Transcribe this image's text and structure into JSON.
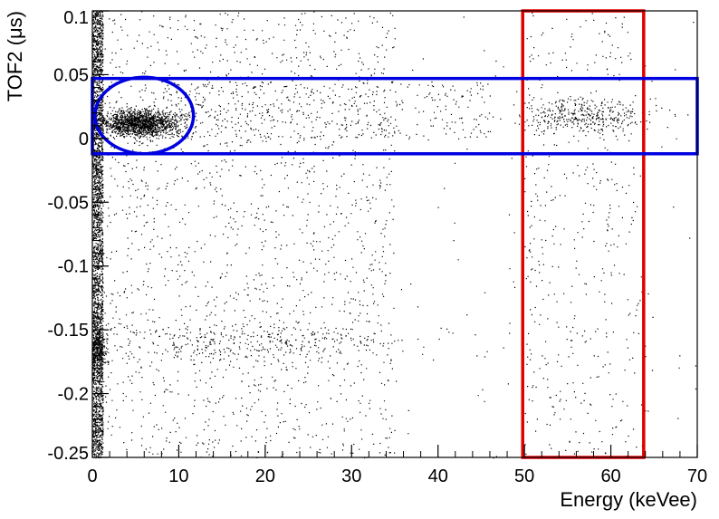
{
  "chart_data": {
    "type": "scatter",
    "xlabel": "Energy (keVee)",
    "ylabel": "TOF2 (μs)",
    "xlim": [
      0,
      70
    ],
    "ylim": [
      -0.25,
      0.1
    ],
    "xticks": [
      0,
      10,
      20,
      30,
      40,
      50,
      60,
      70
    ],
    "yticks": [
      -0.25,
      -0.2,
      -0.15,
      -0.1,
      -0.05,
      0,
      0.05,
      0.1
    ],
    "xtick_labels": [
      "0",
      "10",
      "20",
      "30",
      "40",
      "50",
      "60",
      "70"
    ],
    "ytick_labels": [
      "-0.25",
      "-0.2",
      "-0.15",
      "-0.1",
      "-0.05",
      "0",
      "0.05",
      "0.1"
    ],
    "grid": false,
    "point_color": "#000000",
    "clusters": [
      {
        "x_range": [
          0,
          1.2
        ],
        "y_range": [
          -0.25,
          0.1
        ],
        "count": 2600
      },
      {
        "x_center": 0.6,
        "y_center": -0.163,
        "x_spread": 0.6,
        "y_spread": 0.008,
        "count": 300
      },
      {
        "x_center": 5.5,
        "y_center": 0.012,
        "x_spread": 2.3,
        "y_spread": 0.005,
        "count": 1500
      },
      {
        "x_range": [
          1,
          35
        ],
        "y_range": [
          -0.25,
          0.1
        ],
        "count": 1700
      },
      {
        "x_center": 18,
        "y_center": -0.16,
        "x_spread": 10,
        "y_spread": 0.008,
        "count": 350
      },
      {
        "x_range": [
          8,
          46
        ],
        "y_range": [
          0.0,
          0.045
        ],
        "count": 450
      },
      {
        "x_center": 57,
        "y_center": 0.018,
        "x_spread": 3.5,
        "y_spread": 0.007,
        "count": 380
      },
      {
        "x_range": [
          50,
          64
        ],
        "y_range": [
          -0.25,
          0.1
        ],
        "count": 420
      },
      {
        "x_range": [
          34,
          70
        ],
        "y_range": [
          -0.25,
          0.1
        ],
        "count": 120
      }
    ],
    "annotations": [
      {
        "shape": "rectangle",
        "color": "#e00000",
        "x_range": [
          49.8,
          63.8
        ],
        "y_range": [
          -0.25,
          0.1
        ]
      },
      {
        "shape": "rectangle",
        "color": "#0000e0",
        "x_range": [
          0,
          70
        ],
        "y_range": [
          -0.012,
          0.047
        ]
      },
      {
        "shape": "ellipse",
        "color": "#0000e0",
        "x_center": 6,
        "y_center": 0.018,
        "x_radius": 5.7,
        "y_radius": 0.03
      }
    ]
  }
}
